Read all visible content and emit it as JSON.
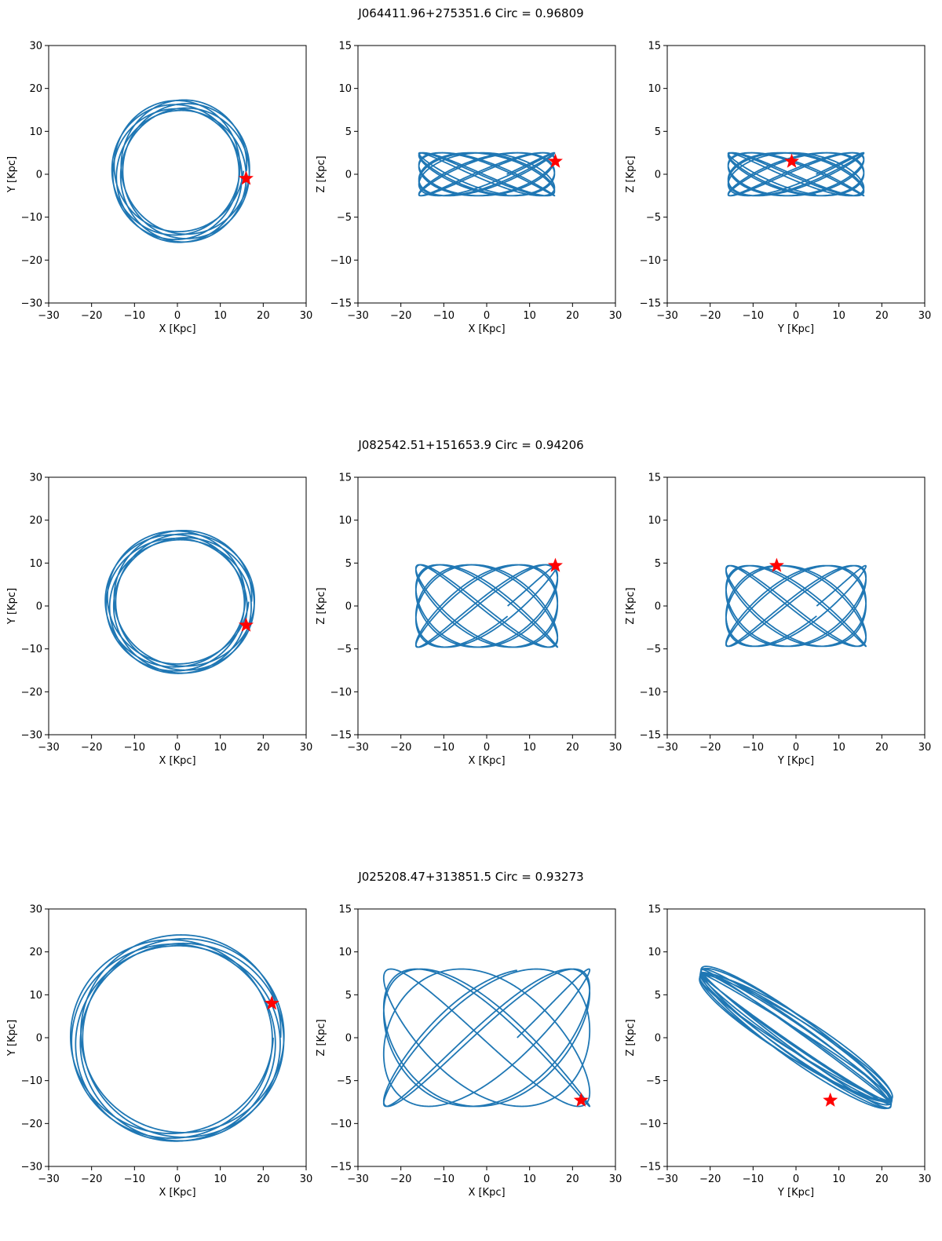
{
  "figure": {
    "rows": [
      {
        "title": "J064411.96+275351.6    Circ = 0.96809"
      },
      {
        "title": "J082542.51+151653.9    Circ = 0.94206"
      },
      {
        "title": "J025208.47+313851.5    Circ = 0.93273"
      }
    ]
  },
  "colors": {
    "orbit": "#1f77b4",
    "star": "#ff0000",
    "axes": "#000000"
  },
  "chart_data": [
    {
      "type": "line",
      "row": 0,
      "col": 0,
      "xlabel": "X [Kpc]",
      "ylabel": "Y [Kpc]",
      "xlim": [
        -30,
        30
      ],
      "ylim": [
        -30,
        30
      ],
      "xticks": [
        -30,
        -20,
        -10,
        0,
        10,
        20,
        30
      ],
      "yticks": [
        -30,
        -20,
        -10,
        0,
        10,
        20,
        30
      ],
      "orbit": {
        "kind": "ring",
        "cx": 0.8,
        "cy": 0.8,
        "a": 14.8,
        "b": 15.4,
        "spread": 1.3,
        "turns": 7
      },
      "star": {
        "x": 16,
        "y": -1
      }
    },
    {
      "type": "line",
      "row": 0,
      "col": 1,
      "xlabel": "X [Kpc]",
      "ylabel": "Z [Kpc]",
      "xlim": [
        -30,
        30
      ],
      "ylim": [
        -15,
        15
      ],
      "xticks": [
        -30,
        -20,
        -10,
        0,
        10,
        20,
        30
      ],
      "yticks": [
        -15,
        -10,
        -5,
        0,
        5,
        10,
        15
      ],
      "orbit": {
        "kind": "box",
        "ax": 15.8,
        "az": 2.5,
        "turns": 10
      },
      "star": {
        "x": 16,
        "y": 1.5
      }
    },
    {
      "type": "line",
      "row": 0,
      "col": 2,
      "xlabel": "Y [Kpc]",
      "ylabel": "Z [Kpc]",
      "xlim": [
        -30,
        30
      ],
      "ylim": [
        -15,
        15
      ],
      "xticks": [
        -30,
        -20,
        -10,
        0,
        10,
        20,
        30
      ],
      "yticks": [
        -15,
        -10,
        -5,
        0,
        5,
        10,
        15
      ],
      "orbit": {
        "kind": "box",
        "ax": 15.8,
        "az": 2.5,
        "turns": 10
      },
      "star": {
        "x": -1,
        "y": 1.5
      }
    },
    {
      "type": "line",
      "row": 1,
      "col": 0,
      "xlabel": "X [Kpc]",
      "ylabel": "Y [Kpc]",
      "xlim": [
        -30,
        30
      ],
      "ylim": [
        -30,
        30
      ],
      "xticks": [
        -30,
        -20,
        -10,
        0,
        10,
        20,
        30
      ],
      "yticks": [
        -30,
        -20,
        -10,
        0,
        10,
        20,
        30
      ],
      "orbit": {
        "kind": "ring",
        "cx": 0.6,
        "cy": 1.0,
        "a": 16.2,
        "b": 15.6,
        "spread": 1.2,
        "turns": 7
      },
      "star": {
        "x": 16,
        "y": -4.5
      }
    },
    {
      "type": "line",
      "row": 1,
      "col": 1,
      "xlabel": "X [Kpc]",
      "ylabel": "Z [Kpc]",
      "xlim": [
        -30,
        30
      ],
      "ylim": [
        -15,
        15
      ],
      "xticks": [
        -30,
        -20,
        -10,
        0,
        10,
        20,
        30
      ],
      "yticks": [
        -15,
        -10,
        -5,
        0,
        5,
        10,
        15
      ],
      "orbit": {
        "kind": "box",
        "ax": 16.5,
        "az": 4.8,
        "turns": 8
      },
      "star": {
        "x": 16,
        "y": 4.7
      }
    },
    {
      "type": "line",
      "row": 1,
      "col": 2,
      "xlabel": "Y [Kpc]",
      "ylabel": "Z [Kpc]",
      "xlim": [
        -30,
        30
      ],
      "ylim": [
        -15,
        15
      ],
      "xticks": [
        -30,
        -20,
        -10,
        0,
        10,
        20,
        30
      ],
      "yticks": [
        -15,
        -10,
        -5,
        0,
        5,
        10,
        15
      ],
      "orbit": {
        "kind": "box",
        "ax": 16.3,
        "az": 4.7,
        "turns": 8
      },
      "star": {
        "x": -4.5,
        "y": 4.7
      }
    },
    {
      "type": "line",
      "row": 2,
      "col": 0,
      "xlabel": "X [Kpc]",
      "ylabel": "Y [Kpc]",
      "xlim": [
        -30,
        30
      ],
      "ylim": [
        -30,
        30
      ],
      "xticks": [
        -30,
        -20,
        -10,
        0,
        10,
        20,
        30
      ],
      "yticks": [
        -30,
        -20,
        -10,
        0,
        10,
        20,
        30
      ],
      "orbit": {
        "kind": "ring",
        "cx": 0.0,
        "cy": 0.0,
        "a": 23.5,
        "b": 22.8,
        "spread": 1.4,
        "turns": 6
      },
      "star": {
        "x": 22,
        "y": 8
      }
    },
    {
      "type": "line",
      "row": 2,
      "col": 1,
      "xlabel": "X [Kpc]",
      "ylabel": "Z [Kpc]",
      "xlim": [
        -30,
        30
      ],
      "ylim": [
        -15,
        15
      ],
      "xticks": [
        -30,
        -20,
        -10,
        0,
        10,
        20,
        30
      ],
      "yticks": [
        -15,
        -10,
        -5,
        0,
        5,
        10,
        15
      ],
      "orbit": {
        "kind": "box",
        "ax": 24,
        "az": 8,
        "turns": 6
      },
      "star": {
        "x": 22,
        "y": -7.3
      }
    },
    {
      "type": "line",
      "row": 2,
      "col": 2,
      "xlabel": "Y [Kpc]",
      "ylabel": "Z [Kpc]",
      "xlim": [
        -30,
        30
      ],
      "ylim": [
        -15,
        15
      ],
      "xticks": [
        -30,
        -20,
        -10,
        0,
        10,
        20,
        30
      ],
      "yticks": [
        -15,
        -10,
        -5,
        0,
        5,
        10,
        15
      ],
      "orbit": {
        "kind": "diag",
        "ax": 23.5,
        "az": 8,
        "turns": 10
      },
      "star": {
        "x": 8,
        "y": -7.3
      }
    }
  ]
}
